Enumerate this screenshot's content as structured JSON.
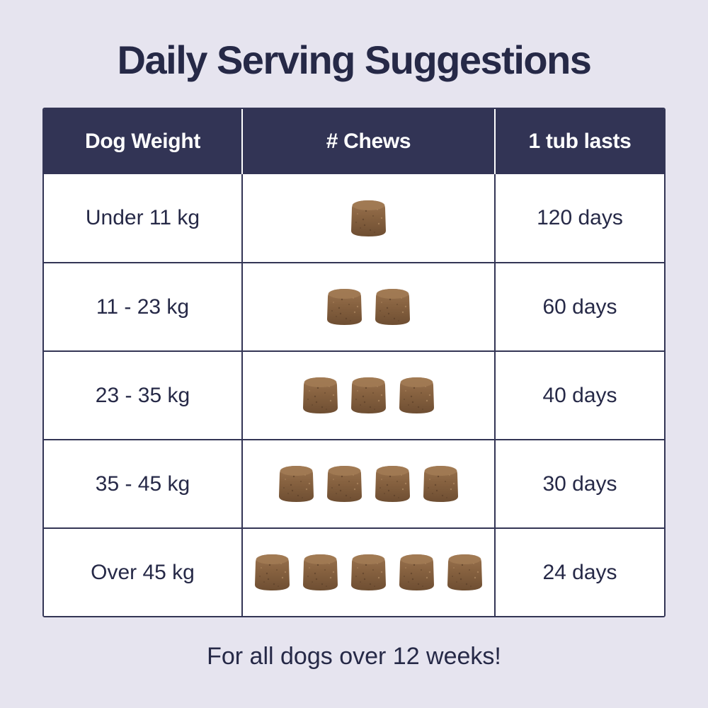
{
  "title": "Daily Serving Suggestions",
  "table": {
    "headers": [
      "Dog Weight",
      "# Chews",
      "1 tub lasts"
    ],
    "rows": [
      {
        "weight": "Under 11 kg",
        "chews": 1,
        "lasts": "120 days"
      },
      {
        "weight": "11 - 23 kg",
        "chews": 2,
        "lasts": "60 days"
      },
      {
        "weight": "23 - 35 kg",
        "chews": 3,
        "lasts": "40 days"
      },
      {
        "weight": "35 - 45 kg",
        "chews": 4,
        "lasts": "30 days"
      },
      {
        "weight": "Over 45 kg",
        "chews": 5,
        "lasts": "24 days"
      }
    ]
  },
  "footnote": "For all dogs over 12 weeks!",
  "colors": {
    "background": "#e6e4ef",
    "header": "#323455",
    "text": "#262947",
    "chew": "#8a6540"
  },
  "icons": {
    "chew": "chew-icon"
  }
}
